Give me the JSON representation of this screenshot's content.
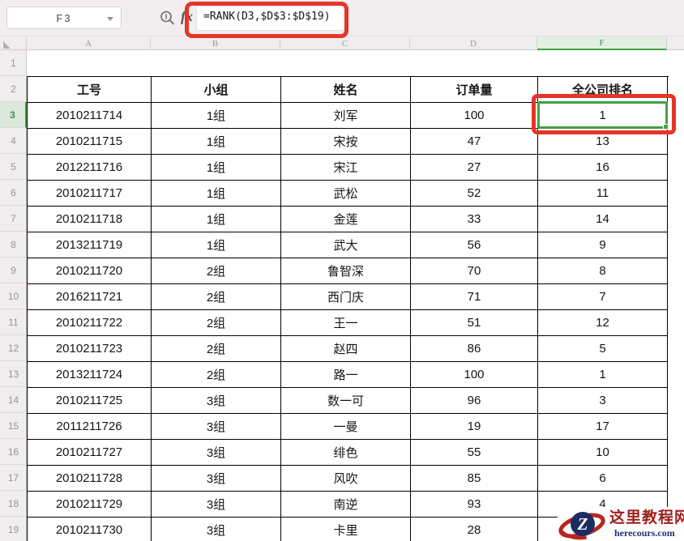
{
  "app": {
    "name_box_value": "F3",
    "fx_label": "fx",
    "formula": "=RANK(D3,$D$3:$D$19)"
  },
  "grid": {
    "column_letters": [
      "A",
      "B",
      "C",
      "D",
      "F"
    ],
    "selected_column": "F",
    "row_numbers": [
      1,
      2,
      3,
      4,
      5,
      6,
      7,
      8,
      9,
      10,
      11,
      12,
      13,
      14,
      15,
      16,
      17,
      18,
      19
    ],
    "selected_row": 3,
    "selected_cell": "F3"
  },
  "table": {
    "headers": [
      "工号",
      "小组",
      "姓名",
      "订单量",
      "全公司排名"
    ],
    "rows": [
      [
        "2010211714",
        "1组",
        "刘军",
        "100",
        "1"
      ],
      [
        "2010211715",
        "1组",
        "宋按",
        "47",
        "13"
      ],
      [
        "2012211716",
        "1组",
        "宋江",
        "27",
        "16"
      ],
      [
        "2010211717",
        "1组",
        "武松",
        "52",
        "11"
      ],
      [
        "2010211718",
        "1组",
        "金莲",
        "33",
        "14"
      ],
      [
        "2013211719",
        "1组",
        "武大",
        "56",
        "9"
      ],
      [
        "2010211720",
        "2组",
        "鲁智深",
        "70",
        "8"
      ],
      [
        "2016211721",
        "2组",
        "西门庆",
        "71",
        "7"
      ],
      [
        "2010211722",
        "2组",
        "王一",
        "51",
        "12"
      ],
      [
        "2010211723",
        "2组",
        "赵四",
        "86",
        "5"
      ],
      [
        "2013211724",
        "2组",
        "路一",
        "100",
        "1"
      ],
      [
        "2010211725",
        "3组",
        "数一可",
        "96",
        "3"
      ],
      [
        "2011211726",
        "3组",
        "一曼",
        "19",
        "17"
      ],
      [
        "2010211727",
        "3组",
        "绯色",
        "55",
        "10"
      ],
      [
        "2010211728",
        "3组",
        "风吹",
        "85",
        "6"
      ],
      [
        "2010211729",
        "3组",
        "南逆",
        "93",
        "4"
      ],
      [
        "2010211730",
        "3组",
        "卡里",
        "28",
        ""
      ]
    ]
  },
  "colors": {
    "selection_green": "#43a047",
    "annotation_red": "#e53529",
    "logo_red": "#9e1f1e",
    "logo_navy": "#1d3373"
  },
  "watermark": {
    "logo_letter": "Z",
    "site_name": "这里教程网",
    "site_url": "herecours.com"
  }
}
